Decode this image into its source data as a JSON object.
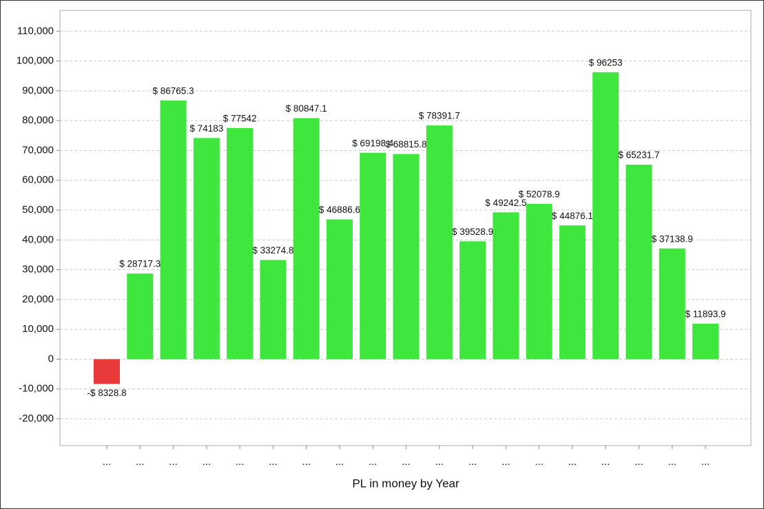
{
  "chart_data": {
    "type": "bar",
    "x_label": "PL in money by Year",
    "categories": [
      "...",
      "...",
      "...",
      "...",
      "...",
      "...",
      "...",
      "...",
      "...",
      "...",
      "...",
      "...",
      "...",
      "...",
      "...",
      "...",
      "...",
      "...",
      "..."
    ],
    "values": [
      -8328.8,
      28717.3,
      86765.3,
      74183,
      77542,
      33274.8,
      80847.1,
      46886.6,
      69198.4,
      68815.8,
      78391.7,
      39528.9,
      49242.5,
      52078.9,
      44876.1,
      96253,
      65231.7,
      37138.9,
      11893.9
    ],
    "value_labels": [
      "-$ 8328.8",
      "$ 28717.3",
      "$ 86765.3",
      "$ 74183",
      "$ 77542",
      "$ 33274.8",
      "$ 80847.1",
      "$ 46886.6",
      "$ 69198.4",
      "$ 68815.8",
      "$ 78391.7",
      "$ 39528.9",
      "$ 49242.5",
      "$ 52078.9",
      "$ 44876.1",
      "$ 96253",
      "$ 65231.7",
      "$ 37138.9",
      "$ 11893.9"
    ],
    "color": "#3ee63e",
    "negative_color": "#e83a3a",
    "ylim": [
      -29000,
      117000
    ],
    "yticks": [
      {
        "value": -20000,
        "label": "-20,000"
      },
      {
        "value": -10000,
        "label": "-10,000"
      },
      0,
      {
        "value": 10000,
        "label": "10,000"
      },
      {
        "value": 20000,
        "label": "20,000"
      },
      {
        "value": 30000,
        "label": "30,000"
      },
      {
        "value": 40000,
        "label": "40,000"
      },
      {
        "value": 50000,
        "label": "50,000"
      },
      {
        "value": 60000,
        "label": "60,000"
      },
      {
        "value": 70000,
        "label": "70,000"
      },
      {
        "value": 80000,
        "label": "80,000"
      },
      {
        "value": 90000,
        "label": "90,000"
      },
      {
        "value": 100000,
        "label": "100,000"
      },
      {
        "value": 110000,
        "label": "110,000"
      }
    ],
    "grid": true
  }
}
